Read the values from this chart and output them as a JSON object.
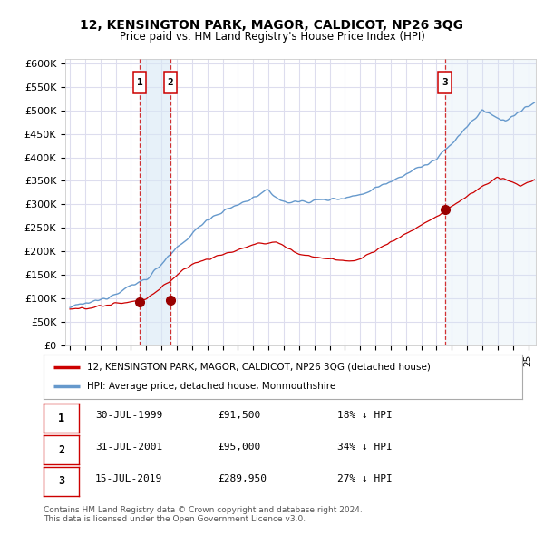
{
  "title": "12, KENSINGTON PARK, MAGOR, CALDICOT, NP26 3QG",
  "subtitle": "Price paid vs. HM Land Registry's House Price Index (HPI)",
  "ylabel_ticks": [
    "£0",
    "£50K",
    "£100K",
    "£150K",
    "£200K",
    "£250K",
    "£300K",
    "£350K",
    "£400K",
    "£450K",
    "£500K",
    "£550K",
    "£600K"
  ],
  "ytick_vals": [
    0,
    50000,
    100000,
    150000,
    200000,
    250000,
    300000,
    350000,
    400000,
    450000,
    500000,
    550000,
    600000
  ],
  "ylim": [
    0,
    610000
  ],
  "xlim_start": 1994.7,
  "xlim_end": 2025.5,
  "sale_dates": [
    1999.58,
    2001.58,
    2019.54
  ],
  "sale_prices": [
    91500,
    95000,
    289950
  ],
  "sale_labels": [
    "1",
    "2",
    "3"
  ],
  "red_line_color": "#cc0000",
  "blue_line_color": "#6699cc",
  "blue_fill_color": "#d8e8f5",
  "vline_color": "#cc0000",
  "marker_color": "#990000",
  "legend_label_red": "12, KENSINGTON PARK, MAGOR, CALDICOT, NP26 3QG (detached house)",
  "legend_label_blue": "HPI: Average price, detached house, Monmouthshire",
  "table_data": [
    [
      "1",
      "30-JUL-1999",
      "£91,500",
      "18% ↓ HPI"
    ],
    [
      "2",
      "31-JUL-2001",
      "£95,000",
      "34% ↓ HPI"
    ],
    [
      "3",
      "15-JUL-2019",
      "£289,950",
      "27% ↓ HPI"
    ]
  ],
  "footer_text": "Contains HM Land Registry data © Crown copyright and database right 2024.\nThis data is licensed under the Open Government Licence v3.0.",
  "background_color": "#ffffff",
  "plot_bg_color": "#ffffff",
  "grid_color": "#ddddee"
}
